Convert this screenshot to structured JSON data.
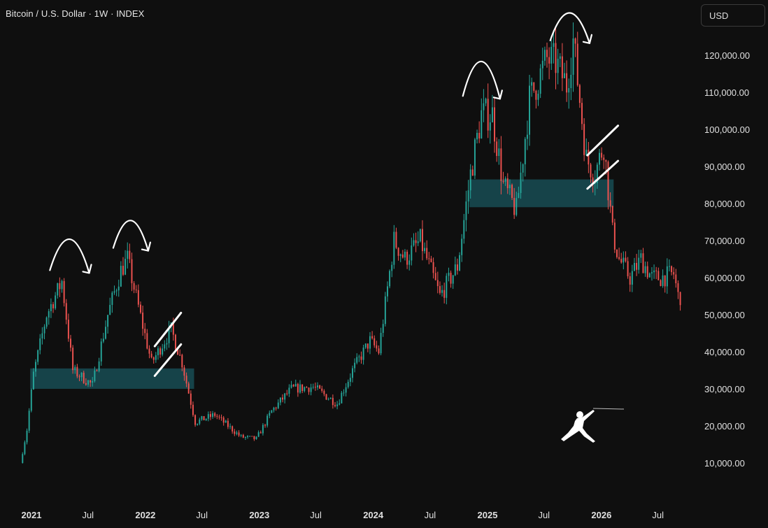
{
  "header": {
    "title": "Bitcoin / U.S. Dollar · 1W · INDEX",
    "currency_label": "USD"
  },
  "colors": {
    "background": "#0f0f0f",
    "up": "#26a69a",
    "down": "#ef5350",
    "zone": "#1a6670",
    "annotation": "#ffffff",
    "axis_text": "#e0e0e0"
  },
  "chart_data": {
    "type": "candlestick",
    "interval": "1W",
    "ylim": [
      0,
      130000
    ],
    "grid": false,
    "legend": "none",
    "yticks": [
      10000,
      20000,
      30000,
      40000,
      50000,
      60000,
      70000,
      80000,
      90000,
      100000,
      110000,
      120000
    ],
    "ytick_labels": [
      "10,000.00",
      "20,000.00",
      "30,000.00",
      "40,000.00",
      "50,000.00",
      "60,000.00",
      "70,000.00",
      "80,000.00",
      "90,000.00",
      "100,000.00",
      "110,000.00",
      "120,000.00"
    ],
    "xticks": [
      {
        "label": "2021",
        "date": "2021-01-01",
        "bold": true
      },
      {
        "label": "Jul",
        "date": "2021-07-01",
        "bold": false
      },
      {
        "label": "2022",
        "date": "2022-01-01",
        "bold": true
      },
      {
        "label": "Jul",
        "date": "2022-07-01",
        "bold": false
      },
      {
        "label": "2023",
        "date": "2023-01-01",
        "bold": true
      },
      {
        "label": "Jul",
        "date": "2023-07-01",
        "bold": false
      },
      {
        "label": "2024",
        "date": "2024-01-01",
        "bold": true
      },
      {
        "label": "Jul",
        "date": "2024-07-01",
        "bold": false
      },
      {
        "label": "2025",
        "date": "2025-01-01",
        "bold": true
      },
      {
        "label": "Jul",
        "date": "2025-07-01",
        "bold": false
      },
      {
        "label": "2026",
        "date": "2026-01-01",
        "bold": true
      },
      {
        "label": "Jul",
        "date": "2026-07-01",
        "bold": false
      }
    ],
    "price_path": [
      [
        "2020-11-30",
        10000
      ],
      [
        "2020-12-21",
        19000
      ],
      [
        "2021-01-11",
        34000
      ],
      [
        "2021-02-22",
        50000
      ],
      [
        "2021-04-12",
        59000
      ],
      [
        "2021-05-17",
        35000
      ],
      [
        "2021-07-19",
        31000
      ],
      [
        "2021-09-06",
        50000
      ],
      [
        "2021-10-18",
        62000
      ],
      [
        "2021-11-08",
        65000
      ],
      [
        "2021-12-27",
        47000
      ],
      [
        "2022-01-24",
        37000
      ],
      [
        "2022-03-28",
        46000
      ],
      [
        "2022-05-02",
        37000
      ],
      [
        "2022-06-13",
        21000
      ],
      [
        "2022-08-15",
        23000
      ],
      [
        "2022-11-07",
        17000
      ],
      [
        "2022-12-26",
        16500
      ],
      [
        "2023-02-13",
        24000
      ],
      [
        "2023-04-17",
        30000
      ],
      [
        "2023-06-26",
        30500
      ],
      [
        "2023-09-11",
        26000
      ],
      [
        "2023-10-30",
        35000
      ],
      [
        "2023-12-25",
        43000
      ],
      [
        "2024-01-22",
        40000
      ],
      [
        "2024-03-11",
        70000
      ],
      [
        "2024-04-15",
        65000
      ],
      [
        "2024-06-03",
        70000
      ],
      [
        "2024-08-05",
        55000
      ],
      [
        "2024-09-30",
        63000
      ],
      [
        "2024-11-11",
        88000
      ],
      [
        "2024-12-16",
        104000
      ],
      [
        "2025-01-20",
        104000
      ],
      [
        "2025-02-24",
        85000
      ],
      [
        "2025-04-07",
        78000
      ],
      [
        "2025-05-19",
        108000
      ],
      [
        "2025-07-14",
        119000
      ],
      [
        "2025-08-11",
        118000
      ],
      [
        "2025-09-15",
        112000
      ],
      [
        "2025-10-06",
        124000
      ],
      [
        "2025-11-17",
        92000
      ],
      [
        "2025-12-15",
        88000
      ],
      [
        "2026-01-12",
        96000
      ],
      [
        "2026-01-26",
        84000
      ],
      [
        "2026-02-09",
        72000
      ],
      [
        "2026-03-02",
        65000
      ],
      [
        "2026-04-06",
        60000
      ],
      [
        "2026-05-11",
        65000
      ],
      [
        "2026-06-15",
        60000
      ],
      [
        "2026-07-13",
        60000
      ],
      [
        "2026-08-24",
        61000
      ],
      [
        "2026-09-07",
        55000
      ]
    ],
    "zones": [
      {
        "name": "support-zone-2021",
        "x1": "2020-12-28",
        "x2": "2022-06-06",
        "y1": 30000,
        "y2": 35500
      },
      {
        "name": "support-zone-2025",
        "x1": "2024-11-04",
        "x2": "2026-02-09",
        "y1": 79000,
        "y2": 86500
      }
    ],
    "arrows": [
      {
        "x1": "2021-03-01",
        "x2": "2021-07-05",
        "y": 62000,
        "peak": 71000
      },
      {
        "x1": "2021-09-20",
        "x2": "2022-01-10",
        "y": 68000,
        "peak": 76000
      },
      {
        "x1": "2024-10-14",
        "x2": "2025-02-10",
        "y": 109000,
        "peak": 119000
      },
      {
        "x1": "2025-07-21",
        "x2": "2025-11-24",
        "y": 124000,
        "peak": 132000
      }
    ],
    "channels": [
      {
        "lines": [
          [
            [
              "2022-01-31",
              41500
            ],
            [
              "2022-04-25",
              50500
            ]
          ],
          [
            [
              "2022-01-31",
              33500
            ],
            [
              "2022-04-25",
              42000
            ]
          ]
        ]
      },
      {
        "lines": [
          [
            [
              "2025-11-17",
              93000
            ],
            [
              "2026-02-23",
              101000
            ]
          ],
          [
            [
              "2025-11-17",
              84000
            ],
            [
              "2026-02-23",
              91500
            ]
          ]
        ]
      }
    ]
  }
}
